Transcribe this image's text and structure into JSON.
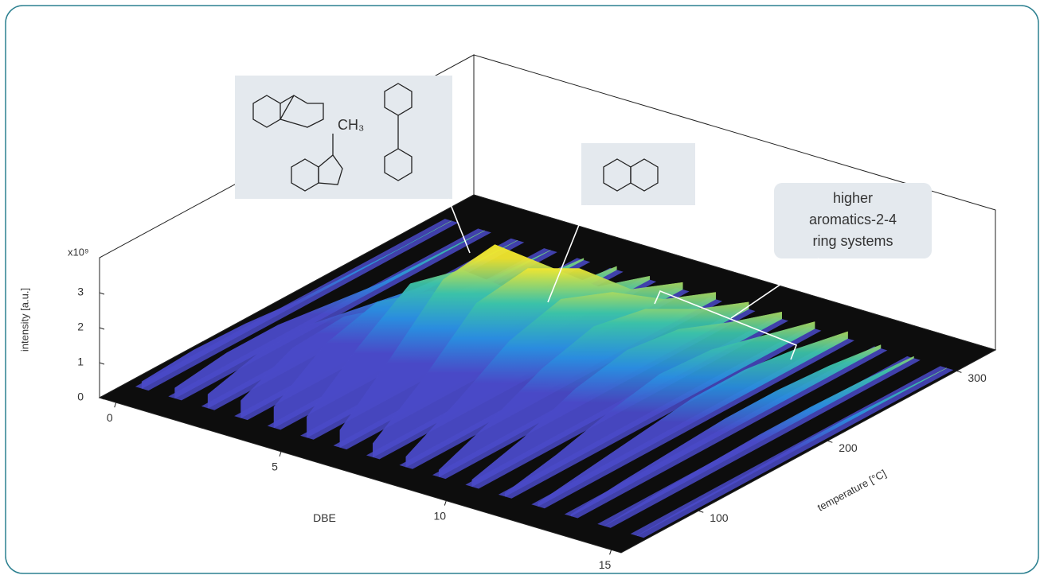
{
  "chart_data": {
    "type": "ridge3d",
    "x_label": "DBE",
    "y_label": "temperature [°C]",
    "z_label": "intensity [a.u.]",
    "z_multiplier": "x10⁹",
    "xlim": [
      -0.5,
      15.3
    ],
    "xticks": [
      0,
      5,
      10,
      15
    ],
    "ylim": [
      40,
      330
    ],
    "yticks": [
      100,
      200,
      300
    ],
    "zlim": [
      0,
      4
    ],
    "zticks": [
      0,
      1,
      2,
      3
    ],
    "colormap": [
      "#4a4ac8",
      "#2a8ee0",
      "#3cc3a8",
      "#f2e830",
      "#f8f020"
    ],
    "y": [
      60,
      100,
      140,
      180,
      220,
      260,
      300
    ],
    "series": [
      {
        "x": 0,
        "values": [
          0.2,
          0.3,
          0.25,
          0.1,
          0.05,
          0,
          0
        ]
      },
      {
        "x": 1,
        "values": [
          0.3,
          0.5,
          0.5,
          0.3,
          0.1,
          0.05,
          0
        ]
      },
      {
        "x": 2,
        "values": [
          0.4,
          0.8,
          0.8,
          0.5,
          0.2,
          0.05,
          0
        ]
      },
      {
        "x": 3,
        "values": [
          0.5,
          1.2,
          1.3,
          0.8,
          0.3,
          0.1,
          0
        ]
      },
      {
        "x": 4,
        "values": [
          0.6,
          1.6,
          2.0,
          1.5,
          0.6,
          0.2,
          0.05
        ]
      },
      {
        "x": 5,
        "values": [
          0.6,
          1.8,
          2.8,
          2.4,
          1.0,
          0.3,
          0.1
        ]
      },
      {
        "x": 6,
        "values": [
          0.5,
          1.8,
          3.2,
          3.4,
          2.0,
          0.6,
          0.1
        ]
      },
      {
        "x": 7,
        "values": [
          0.4,
          1.5,
          2.8,
          3.0,
          2.2,
          0.8,
          0.2
        ]
      },
      {
        "x": 8,
        "values": [
          0.3,
          1.1,
          2.0,
          2.4,
          1.8,
          0.8,
          0.2
        ]
      },
      {
        "x": 9,
        "values": [
          0.2,
          0.8,
          1.5,
          1.9,
          1.6,
          0.8,
          0.2
        ]
      },
      {
        "x": 10,
        "values": [
          0.2,
          0.6,
          1.2,
          1.5,
          1.3,
          0.7,
          0.2
        ]
      },
      {
        "x": 11,
        "values": [
          0.1,
          0.4,
          0.8,
          1.1,
          1.0,
          0.6,
          0.2
        ]
      },
      {
        "x": 12,
        "values": [
          0.1,
          0.3,
          0.5,
          0.7,
          0.7,
          0.5,
          0.2
        ]
      },
      {
        "x": 13,
        "values": [
          0.05,
          0.2,
          0.3,
          0.4,
          0.4,
          0.3,
          0.1
        ]
      },
      {
        "x": 14,
        "values": [
          0,
          0.1,
          0.15,
          0.2,
          0.2,
          0.15,
          0.05
        ]
      },
      {
        "x": 15,
        "values": [
          0,
          0.05,
          0.05,
          0.1,
          0.1,
          0.05,
          0
        ]
      }
    ],
    "annotations": [
      {
        "text": "CH₃"
      },
      {
        "lines": [
          "higher",
          "aromatics-2-4",
          "ring systems"
        ]
      }
    ]
  }
}
